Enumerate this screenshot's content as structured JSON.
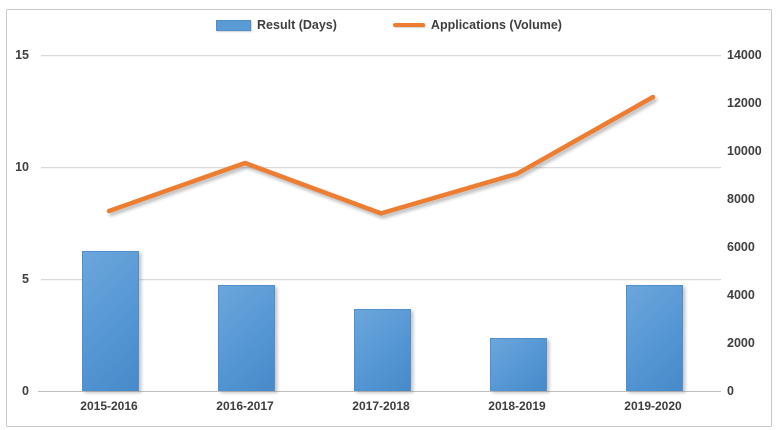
{
  "legend": {
    "items": [
      {
        "label": "Result (Days)",
        "marker": "bar-swatch",
        "color": "#5b9bd5"
      },
      {
        "label": "Applications (Volume)",
        "marker": "line-swatch",
        "color": "#ed7d31"
      }
    ],
    "position": "top-center"
  },
  "chart_data": {
    "type": "combo",
    "title": "",
    "categories": [
      "2015-2016",
      "2016-2017",
      "2017-2018",
      "2018-2019",
      "2019-2020"
    ],
    "series": [
      {
        "name": "Result (Days)",
        "type": "bar",
        "axis": "left",
        "values": [
          6.2,
          4.7,
          3.6,
          2.3,
          4.7
        ],
        "color": "#5b9bd5"
      },
      {
        "name": "Applications (Volume)",
        "type": "line",
        "axis": "right",
        "values": [
          7500,
          9500,
          7400,
          9050,
          12250
        ],
        "color": "#ed7d31"
      }
    ],
    "left_axis": {
      "min": 0,
      "max": 15,
      "ticks": [
        0,
        5,
        10,
        15
      ]
    },
    "right_axis": {
      "min": 0,
      "max": 14000,
      "ticks": [
        0,
        2000,
        4000,
        6000,
        8000,
        10000,
        12000,
        14000
      ]
    },
    "grid": true,
    "legend_position": "top-center",
    "colors": {
      "gridline": "#d9d9d9",
      "axis_line": "#bfbfbf",
      "tick_text": "#3f3f3f"
    }
  }
}
